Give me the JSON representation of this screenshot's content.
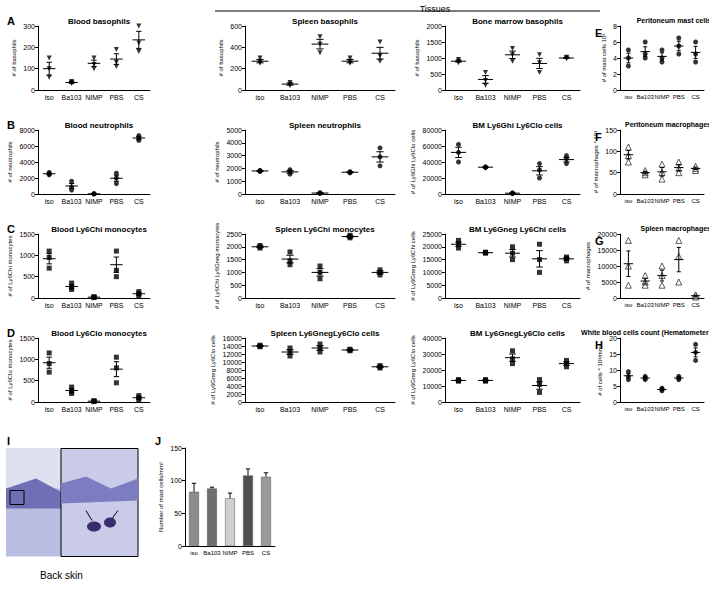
{
  "header": "Tissues",
  "image": {
    "panel": "I",
    "label": "Back skin"
  },
  "chart_data": [
    {
      "type": "scatter",
      "panel": "A",
      "title": "Blood basophils",
      "ylabel": "# of basophils",
      "marker": "triangle-down",
      "categories": [
        "iso",
        "Ba103",
        "NIMP",
        "PBS",
        "CS"
      ],
      "values": [
        [
          60,
          100,
          150
        ],
        [
          30,
          35,
          40
        ],
        [
          100,
          120,
          150
        ],
        [
          110,
          130,
          190
        ],
        [
          180,
          220,
          300
        ]
      ],
      "means": [
        100,
        35,
        125,
        145,
        235
      ],
      "errors": [
        30,
        5,
        15,
        25,
        40
      ],
      "ylim": [
        0,
        300
      ],
      "yticks": [
        0,
        100,
        200,
        300
      ]
    },
    {
      "type": "scatter",
      "title": "Spleen basophils",
      "ylabel": "# of basophils",
      "marker": "triangle-down",
      "categories": [
        "iso",
        "Ba103",
        "NIMP",
        "PBS",
        "CS"
      ],
      "values": [
        [
          250,
          270,
          300
        ],
        [
          40,
          55,
          70
        ],
        [
          350,
          430,
          500
        ],
        [
          250,
          270,
          300
        ],
        [
          270,
          320,
          450
        ]
      ],
      "means": [
        270,
        55,
        430,
        270,
        345
      ],
      "errors": [
        15,
        10,
        45,
        15,
        55
      ],
      "ylim": [
        0,
        600
      ],
      "yticks": [
        0,
        200,
        400,
        600
      ]
    },
    {
      "type": "scatter",
      "title": "Bone marrow basophils",
      "ylabel": "# of basophils",
      "marker": "triangle-down",
      "categories": [
        "iso",
        "Ba103",
        "NIMP",
        "PBS",
        "CS"
      ],
      "values": [
        [
          850,
          900,
          950
        ],
        [
          150,
          300,
          550
        ],
        [
          900,
          1100,
          1300
        ],
        [
          550,
          850,
          1100
        ],
        [
          980,
          1000,
          1020
        ]
      ],
      "means": [
        900,
        330,
        1100,
        830,
        1000
      ],
      "errors": [
        30,
        120,
        115,
        160,
        12
      ],
      "ylim": [
        0,
        2000
      ],
      "yticks": [
        0,
        500,
        1000,
        1500,
        2000
      ]
    },
    {
      "type": "scatter",
      "panel": "E",
      "title": "Peritoneum mast cells",
      "ylabel": "# of mast cells 10³",
      "marker": "circle",
      "categories": [
        "iso",
        "Ba103",
        "NIMP",
        "PBS",
        "CS"
      ],
      "values": [
        [
          3,
          4,
          5
        ],
        [
          4,
          4.5,
          6
        ],
        [
          3.5,
          4,
          5
        ],
        [
          4.5,
          5.5,
          6.5
        ],
        [
          3.5,
          4.5,
          6
        ]
      ],
      "means": [
        4,
        4.8,
        4.2,
        5.5,
        4.7
      ],
      "errors": [
        0.6,
        0.6,
        0.45,
        0.6,
        0.75
      ],
      "ylim": [
        0,
        8
      ],
      "yticks": [
        0,
        2,
        4,
        6,
        8
      ]
    },
    {
      "type": "scatter",
      "panel": "B",
      "title": "Blood neutrophils",
      "ylabel": "# of neutrophils",
      "marker": "circle",
      "categories": [
        "iso",
        "Ba103",
        "NIMP",
        "PBS",
        "CS"
      ],
      "values": [
        [
          2400,
          2500,
          2700
        ],
        [
          500,
          900,
          1600
        ],
        [
          10,
          20,
          30
        ],
        [
          1300,
          2000,
          2600
        ],
        [
          6700,
          7000,
          7300
        ]
      ],
      "means": [
        2530,
        1000,
        20,
        1970,
        7000
      ],
      "errors": [
        90,
        320,
        6,
        380,
        170
      ],
      "ylim": [
        0,
        8000
      ],
      "yticks": [
        0,
        2000,
        4000,
        6000,
        8000
      ]
    },
    {
      "type": "scatter",
      "title": "Spleen neutrophils",
      "ylabel": "# of neutrophils",
      "marker": "circle",
      "categories": [
        "iso",
        "Ba103",
        "NIMP",
        "PBS",
        "CS"
      ],
      "values": [
        [
          1750,
          1800,
          1850
        ],
        [
          1550,
          1750,
          1900
        ],
        [
          50,
          70,
          100
        ],
        [
          1650,
          1700,
          1750
        ],
        [
          2200,
          2900,
          3600
        ]
      ],
      "means": [
        1800,
        1730,
        73,
        1700,
        2900
      ],
      "errors": [
        30,
        100,
        15,
        30,
        400
      ],
      "ylim": [
        0,
        5000
      ],
      "yticks": [
        0,
        1000,
        2000,
        3000,
        4000,
        5000
      ]
    },
    {
      "type": "scatter",
      "title": "BM Ly6Ghi Ly6Clo cells",
      "ylabel": "# of Ly6Ghi Ly6Clo cells",
      "marker": "circle",
      "categories": [
        "iso",
        "Ba103",
        "NIMP",
        "PBS",
        "CS"
      ],
      "values": [
        [
          40000,
          52000,
          62000
        ],
        [
          33000,
          33500,
          34000
        ],
        [
          500,
          1000,
          1500
        ],
        [
          20000,
          30000,
          38000
        ],
        [
          38000,
          44000,
          48000
        ]
      ],
      "means": [
        52000,
        33500,
        1000,
        29000,
        43000
      ],
      "errors": [
        6400,
        300,
        300,
        5200,
        2900
      ],
      "ylim": [
        0,
        80000
      ],
      "yticks": [
        0,
        20000,
        40000,
        60000,
        80000
      ]
    },
    {
      "type": "scatter",
      "panel": "F",
      "title": "Peritoneum macrophages",
      "ylabel": "# of macrophages * 10³",
      "marker": "triangle-open",
      "categories": [
        "iso",
        "Ba103",
        "NIMP",
        "PBS",
        "CS"
      ],
      "values": [
        [
          75,
          90,
          110
        ],
        [
          45,
          50,
          55
        ],
        [
          35,
          50,
          70
        ],
        [
          50,
          60,
          75
        ],
        [
          55,
          60,
          65
        ]
      ],
      "means": [
        92,
        50,
        52,
        62,
        60
      ],
      "errors": [
        10,
        3,
        10,
        7,
        3
      ],
      "ylim": [
        0,
        150
      ],
      "yticks": [
        0,
        50,
        100,
        150
      ]
    },
    {
      "type": "scatter",
      "panel": "C",
      "title": "Blood Ly6Chi monocytes",
      "ylabel": "# of Ly6Chi monocytes",
      "marker": "square",
      "categories": [
        "iso",
        "Ba103",
        "NIMP",
        "PBS",
        "CS"
      ],
      "values": [
        [
          700,
          950,
          1100
        ],
        [
          200,
          250,
          350
        ],
        [
          10,
          20,
          30
        ],
        [
          500,
          650,
          1100
        ],
        [
          50,
          100,
          150
        ]
      ],
      "means": [
        920,
        270,
        20,
        780,
        100
      ],
      "errors": [
        120,
        45,
        6,
        180,
        30
      ],
      "ylim": [
        0,
        1500
      ],
      "yticks": [
        0,
        500,
        1000,
        1500
      ]
    },
    {
      "type": "scatter",
      "title": "Spleen Ly6Chi monocytes",
      "ylabel": "# of Ly6Chi Ly6Gneg monocytes",
      "marker": "square",
      "categories": [
        "iso",
        "Ba103",
        "NIMP",
        "PBS",
        "CS"
      ],
      "values": [
        [
          1950,
          2000,
          2050
        ],
        [
          1300,
          1450,
          1800
        ],
        [
          750,
          1000,
          1250
        ],
        [
          2350,
          2400,
          2450
        ],
        [
          900,
          1000,
          1100
        ]
      ],
      "means": [
        2000,
        1520,
        1000,
        2400,
        1000
      ],
      "errors": [
        30,
        150,
        145,
        30,
        60
      ],
      "ylim": [
        0,
        2500
      ],
      "yticks": [
        0,
        500,
        1000,
        1500,
        2000,
        2500
      ]
    },
    {
      "type": "scatter",
      "title": "BM Ly6Gneg Ly6Chi cells",
      "ylabel": "# of Ly6Gneg Ly6Chi cells",
      "marker": "square",
      "categories": [
        "iso",
        "Ba103",
        "NIMP",
        "PBS",
        "CS"
      ],
      "values": [
        [
          19500,
          21000,
          22500
        ],
        [
          17500,
          17700,
          17900
        ],
        [
          15000,
          17500,
          20000
        ],
        [
          10000,
          15000,
          21000
        ],
        [
          14500,
          15500,
          16000
        ]
      ],
      "means": [
        21000,
        17700,
        17500,
        15300,
        15300
      ],
      "errors": [
        870,
        120,
        1450,
        3200,
        450
      ],
      "ylim": [
        0,
        25000
      ],
      "yticks": [
        0,
        5000,
        10000,
        15000,
        20000,
        25000
      ]
    },
    {
      "type": "scatter",
      "panel": "G",
      "title": "Spleen macrophages",
      "ylabel": "# of macrophages",
      "marker": "triangle-open",
      "categories": [
        "iso",
        "Ba103",
        "NIMP",
        "PBS",
        "CS"
      ],
      "values": [
        [
          4000,
          10000,
          18000
        ],
        [
          4000,
          5000,
          7000
        ],
        [
          4000,
          7000,
          10000
        ],
        [
          5000,
          13000,
          18000
        ],
        [
          300,
          700,
          1000
        ]
      ],
      "means": [
        10700,
        5300,
        7000,
        12000,
        700
      ],
      "errors": [
        4000,
        900,
        1700,
        3800,
        200
      ],
      "ylim": [
        0,
        20000
      ],
      "yticks": [
        0,
        5000,
        10000,
        15000,
        20000
      ]
    },
    {
      "type": "scatter",
      "panel": "D",
      "title": "Blood Ly6Clo monocytes",
      "ylabel": "# of Ly6Clo monocytes",
      "marker": "square",
      "categories": [
        "iso",
        "Ba103",
        "NIMP",
        "PBS",
        "CS"
      ],
      "values": [
        [
          700,
          900,
          1150
        ],
        [
          200,
          250,
          350
        ],
        [
          10,
          20,
          30
        ],
        [
          450,
          800,
          1050
        ],
        [
          50,
          100,
          150
        ]
      ],
      "means": [
        920,
        270,
        20,
        770,
        100
      ],
      "errors": [
        130,
        45,
        6,
        175,
        30
      ],
      "ylim": [
        0,
        1500
      ],
      "yticks": [
        0,
        500,
        1000,
        1500
      ]
    },
    {
      "type": "scatter",
      "title": "Spleen Ly6GnegLy6Clo cells",
      "ylabel": "# of Ly6Gneg Ly6Clo cells",
      "marker": "square",
      "categories": [
        "iso",
        "Ba103",
        "NIMP",
        "PBS",
        "CS"
      ],
      "values": [
        [
          13800,
          14000,
          14200
        ],
        [
          11500,
          12500,
          13500
        ],
        [
          12500,
          13500,
          14500
        ],
        [
          12800,
          13000,
          13200
        ],
        [
          8500,
          8800,
          9100
        ]
      ],
      "means": [
        14000,
        12500,
        13500,
        13000,
        8800
      ],
      "errors": [
        120,
        580,
        580,
        120,
        170
      ],
      "ylim": [
        0,
        16000
      ],
      "yticks": [
        0,
        2000,
        4000,
        6000,
        8000,
        10000,
        12000,
        14000,
        16000
      ]
    },
    {
      "type": "scatter",
      "title": "BM Ly6GnegLy6Clo cells",
      "ylabel": "# of Ly6Gneg Ly6Clo cells",
      "marker": "square",
      "categories": [
        "iso",
        "Ba103",
        "NIMP",
        "PBS",
        "CS"
      ],
      "values": [
        [
          13000,
          13500,
          14000
        ],
        [
          13000,
          13500,
          14000
        ],
        [
          24000,
          27000,
          32000
        ],
        [
          6000,
          11000,
          14000
        ],
        [
          22000,
          24000,
          26000
        ]
      ],
      "means": [
        13500,
        13500,
        27700,
        10300,
        24000
      ],
      "errors": [
        300,
        300,
        2300,
        2300,
        1150
      ],
      "ylim": [
        0,
        40000
      ],
      "yticks": [
        0,
        10000,
        20000,
        30000,
        40000
      ]
    },
    {
      "type": "scatter",
      "panel": "H",
      "title": "White blood cells count (Hematometer)",
      "ylabel": "# of cells * 10³/mm³",
      "marker": "circle",
      "categories": [
        "iso",
        "Ba103",
        "NIMP",
        "PBS",
        "CS"
      ],
      "values": [
        [
          7,
          8,
          9.5
        ],
        [
          7,
          7.5,
          8
        ],
        [
          3.5,
          4,
          4.3
        ],
        [
          7,
          7.5,
          8
        ],
        [
          13,
          15.5,
          18
        ]
      ],
      "means": [
        8.2,
        7.5,
        3.9,
        7.5,
        15.5
      ],
      "errors": [
        0.7,
        0.3,
        0.25,
        0.3,
        1.4
      ],
      "ylim": [
        0,
        20
      ],
      "yticks": [
        0,
        5,
        10,
        15,
        20
      ]
    },
    {
      "type": "bar",
      "panel": "J",
      "ylabel": "Number of mast cells/mm²",
      "categories": [
        "iso",
        "Ba103",
        "NIMP",
        "PBS",
        "CS"
      ],
      "values": [
        83,
        88,
        73,
        108,
        106
      ],
      "errors": [
        13,
        2,
        8,
        10,
        6
      ],
      "colors": [
        "#8c8c8c",
        "#6e6e6e",
        "#cfcfcf",
        "#4f4f4f",
        "#9a9a9a"
      ],
      "ylim": [
        0,
        150
      ],
      "yticks": [
        0,
        50,
        100,
        150
      ]
    }
  ]
}
